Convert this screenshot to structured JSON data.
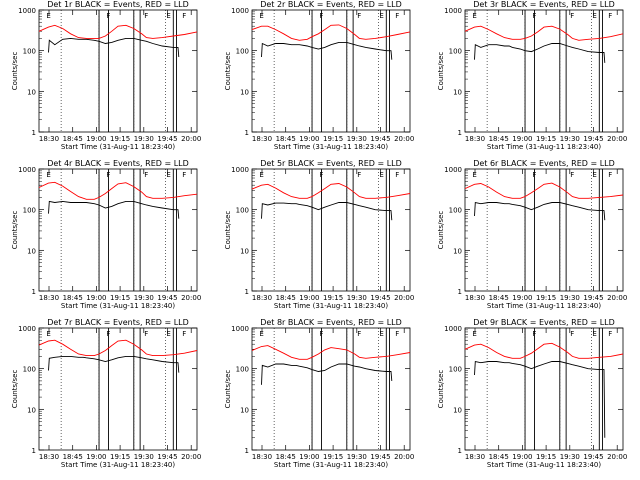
{
  "figure": {
    "title_pattern": "BLACK = Events, RED = LLD"
  },
  "common": {
    "xlabel": "Start Time (31-Aug-11 18:23:40)",
    "ylabel": "Counts/sec",
    "x_tick_labels": [
      "18:30",
      "18:45",
      "19:00",
      "19:15",
      "19:30",
      "19:45",
      "20:00"
    ],
    "y_tick_labels": [
      "1",
      "10",
      "100",
      "1000"
    ],
    "colors": {
      "events": "#000000",
      "lld": "#ff0000",
      "axes": "#000000"
    }
  },
  "chart_data": [
    {
      "type": "line",
      "title": "Det 1r  BLACK = Events, RED = LLD",
      "xlabel": "Start Time (31-Aug-11 18:23:40)",
      "ylabel": "Counts/sec",
      "x_unit": "minutes after 18:23:40",
      "xlim": [
        0,
        100
      ],
      "ylim": [
        1,
        1000
      ],
      "yscale": "log",
      "marker_labels": [
        "E",
        "F",
        "F",
        "F",
        "E"
      ],
      "series": [
        {
          "name": "LLD",
          "color": "#ff0000",
          "x": [
            0,
            6,
            10,
            15,
            20,
            25,
            30,
            35,
            38,
            42,
            46,
            50,
            55,
            60,
            65,
            68,
            72,
            78,
            85,
            92,
            100
          ],
          "y": [
            300,
            380,
            420,
            350,
            260,
            210,
            200,
            200,
            200,
            230,
            300,
            400,
            420,
            350,
            260,
            210,
            200,
            210,
            230,
            250,
            290
          ]
        },
        {
          "name": "Events",
          "color": "#000000",
          "x": [
            6,
            6.5,
            10,
            15,
            20,
            25,
            28,
            30,
            35,
            38,
            42,
            46,
            50,
            55,
            60,
            65,
            68,
            72,
            78,
            85,
            88,
            88.5
          ],
          "y": [
            90,
            180,
            140,
            190,
            200,
            190,
            190,
            190,
            180,
            170,
            150,
            160,
            180,
            200,
            200,
            180,
            170,
            150,
            130,
            120,
            120,
            70
          ]
        }
      ]
    },
    {
      "type": "line",
      "title": "Det 2r  BLACK = Events, RED = LLD",
      "xlabel": "Start Time (31-Aug-11 18:23:40)",
      "ylabel": "Counts/sec",
      "x_unit": "minutes after 18:23:40",
      "xlim": [
        0,
        100
      ],
      "ylim": [
        1,
        1000
      ],
      "yscale": "log",
      "marker_labels": [
        "E",
        "F",
        "F",
        "F",
        "E"
      ],
      "series": [
        {
          "name": "LLD",
          "color": "#ff0000",
          "x": [
            0,
            6,
            10,
            15,
            20,
            25,
            30,
            35,
            38,
            42,
            46,
            50,
            55,
            60,
            65,
            68,
            72,
            78,
            85,
            92,
            100
          ],
          "y": [
            330,
            400,
            400,
            330,
            260,
            200,
            180,
            190,
            220,
            260,
            330,
            420,
            430,
            350,
            250,
            200,
            190,
            200,
            220,
            250,
            290
          ]
        },
        {
          "name": "Events",
          "color": "#000000",
          "x": [
            6,
            6.5,
            10,
            15,
            20,
            25,
            28,
            30,
            35,
            38,
            42,
            46,
            50,
            55,
            60,
            65,
            68,
            72,
            78,
            85,
            88,
            88.5
          ],
          "y": [
            70,
            150,
            130,
            150,
            150,
            140,
            140,
            140,
            130,
            120,
            110,
            120,
            140,
            160,
            160,
            140,
            130,
            120,
            110,
            100,
            100,
            60
          ]
        }
      ]
    },
    {
      "type": "line",
      "title": "Det 3r  BLACK = Events, RED = LLD",
      "xlabel": "Start Time (31-Aug-11 18:23:40)",
      "ylabel": "Counts/sec",
      "x_unit": "minutes after 18:23:40",
      "xlim": [
        0,
        100
      ],
      "ylim": [
        1,
        1000
      ],
      "yscale": "log",
      "marker_labels": [
        "E",
        "F",
        "F",
        "F",
        "E"
      ],
      "series": [
        {
          "name": "LLD",
          "color": "#ff0000",
          "x": [
            0,
            6,
            10,
            15,
            20,
            25,
            30,
            35,
            38,
            42,
            46,
            50,
            55,
            60,
            65,
            68,
            72,
            78,
            85,
            92,
            100
          ],
          "y": [
            300,
            380,
            400,
            330,
            260,
            210,
            190,
            190,
            200,
            230,
            290,
            380,
            400,
            340,
            250,
            200,
            180,
            190,
            200,
            220,
            260
          ]
        },
        {
          "name": "Events",
          "color": "#000000",
          "x": [
            6,
            6.5,
            10,
            15,
            20,
            25,
            28,
            30,
            35,
            38,
            42,
            46,
            50,
            55,
            60,
            65,
            68,
            72,
            78,
            85,
            88,
            88.5
          ],
          "y": [
            60,
            140,
            120,
            140,
            140,
            130,
            130,
            120,
            110,
            100,
            95,
            110,
            130,
            150,
            150,
            130,
            120,
            110,
            95,
            90,
            90,
            50
          ]
        }
      ]
    },
    {
      "type": "line",
      "title": "Det 4r  BLACK = Events, RED = LLD",
      "xlabel": "Start Time (31-Aug-11 18:23:40)",
      "ylabel": "Counts/sec",
      "x_unit": "minutes after 18:23:40",
      "xlim": [
        0,
        100
      ],
      "ylim": [
        1,
        1000
      ],
      "yscale": "log",
      "marker_labels": [
        "E",
        "F",
        "F",
        "F",
        "E"
      ],
      "series": [
        {
          "name": "LLD",
          "color": "#ff0000",
          "x": [
            0,
            6,
            10,
            15,
            20,
            25,
            30,
            35,
            38,
            42,
            46,
            50,
            55,
            60,
            65,
            68,
            72,
            78,
            85,
            92,
            100
          ],
          "y": [
            350,
            450,
            470,
            380,
            280,
            210,
            180,
            180,
            200,
            250,
            330,
            430,
            460,
            370,
            270,
            210,
            190,
            190,
            200,
            220,
            240
          ]
        },
        {
          "name": "Events",
          "color": "#000000",
          "x": [
            6,
            6.5,
            10,
            15,
            20,
            25,
            28,
            30,
            35,
            38,
            42,
            46,
            50,
            55,
            60,
            65,
            68,
            72,
            78,
            85,
            88,
            88.5
          ],
          "y": [
            80,
            160,
            150,
            160,
            150,
            150,
            150,
            150,
            140,
            130,
            110,
            120,
            140,
            160,
            160,
            140,
            130,
            120,
            110,
            100,
            100,
            60
          ]
        }
      ]
    },
    {
      "type": "line",
      "title": "Det 5r  BLACK = Events, RED = LLD",
      "xlabel": "Start Time (31-Aug-11 18:23:40)",
      "ylabel": "Counts/sec",
      "x_unit": "minutes after 18:23:40",
      "xlim": [
        0,
        100
      ],
      "ylim": [
        1,
        1000
      ],
      "yscale": "log",
      "marker_labels": [
        "E",
        "F",
        "F",
        "F",
        "E"
      ],
      "series": [
        {
          "name": "LLD",
          "color": "#ff0000",
          "x": [
            0,
            6,
            10,
            15,
            20,
            25,
            30,
            35,
            38,
            42,
            46,
            50,
            55,
            60,
            65,
            68,
            72,
            78,
            85,
            92,
            100
          ],
          "y": [
            320,
            400,
            420,
            340,
            260,
            210,
            190,
            190,
            210,
            260,
            330,
            420,
            440,
            360,
            260,
            210,
            190,
            190,
            200,
            220,
            250
          ]
        },
        {
          "name": "Events",
          "color": "#000000",
          "x": [
            6,
            6.5,
            10,
            15,
            20,
            25,
            28,
            30,
            35,
            38,
            42,
            46,
            50,
            55,
            60,
            65,
            68,
            72,
            78,
            85,
            88,
            88.5
          ],
          "y": [
            60,
            140,
            130,
            145,
            145,
            140,
            140,
            135,
            125,
            115,
            100,
            115,
            130,
            150,
            150,
            135,
            125,
            115,
            100,
            95,
            95,
            55
          ]
        }
      ]
    },
    {
      "type": "line",
      "title": "Det 6r  BLACK = Events, RED = LLD",
      "xlabel": "Start Time (31-Aug-11 18:23:40)",
      "ylabel": "Counts/sec",
      "x_unit": "minutes after 18:23:40",
      "xlim": [
        0,
        100
      ],
      "ylim": [
        1,
        1000
      ],
      "yscale": "log",
      "marker_labels": [
        "E",
        "F",
        "F",
        "F",
        "E"
      ],
      "series": [
        {
          "name": "LLD",
          "color": "#ff0000",
          "x": [
            0,
            6,
            10,
            15,
            20,
            25,
            30,
            35,
            38,
            42,
            46,
            50,
            55,
            60,
            65,
            68,
            72,
            78,
            85,
            92,
            100
          ],
          "y": [
            330,
            420,
            440,
            360,
            270,
            210,
            190,
            190,
            210,
            260,
            330,
            420,
            450,
            360,
            260,
            210,
            190,
            190,
            200,
            210,
            230
          ]
        },
        {
          "name": "Events",
          "color": "#000000",
          "x": [
            6,
            6.5,
            10,
            15,
            20,
            25,
            28,
            30,
            35,
            38,
            42,
            46,
            50,
            55,
            60,
            65,
            68,
            72,
            78,
            85,
            88,
            88.5
          ],
          "y": [
            70,
            150,
            140,
            150,
            150,
            140,
            140,
            135,
            125,
            115,
            100,
            115,
            135,
            150,
            150,
            135,
            125,
            115,
            100,
            95,
            95,
            55
          ]
        }
      ]
    },
    {
      "type": "line",
      "title": "Det 7r  BLACK = Events, RED = LLD",
      "xlabel": "Start Time (31-Aug-11 18:23:40)",
      "ylabel": "Counts/sec",
      "x_unit": "minutes after 18:23:40",
      "xlim": [
        0,
        100
      ],
      "ylim": [
        1,
        1000
      ],
      "yscale": "log",
      "marker_labels": [
        "E",
        "F",
        "F",
        "F",
        "E"
      ],
      "series": [
        {
          "name": "LLD",
          "color": "#ff0000",
          "x": [
            0,
            6,
            10,
            15,
            20,
            25,
            30,
            35,
            38,
            42,
            46,
            50,
            55,
            60,
            65,
            68,
            72,
            78,
            85,
            92,
            100
          ],
          "y": [
            380,
            480,
            500,
            400,
            300,
            230,
            210,
            210,
            230,
            280,
            370,
            480,
            500,
            400,
            290,
            230,
            210,
            210,
            220,
            240,
            280
          ]
        },
        {
          "name": "Events",
          "color": "#000000",
          "x": [
            6,
            6.5,
            10,
            15,
            20,
            25,
            28,
            30,
            35,
            38,
            42,
            46,
            50,
            55,
            60,
            65,
            68,
            72,
            78,
            85,
            88,
            88.5
          ],
          "y": [
            90,
            180,
            190,
            200,
            200,
            190,
            190,
            185,
            175,
            165,
            150,
            165,
            185,
            200,
            200,
            185,
            175,
            165,
            150,
            140,
            140,
            80
          ]
        }
      ]
    },
    {
      "type": "line",
      "title": "Det 8r  BLACK = Events, RED = LLD",
      "xlabel": "Start Time (31-Aug-11 18:23:40)",
      "ylabel": "Counts/sec",
      "x_unit": "minutes after 18:23:40",
      "xlim": [
        0,
        100
      ],
      "ylim": [
        1,
        1000
      ],
      "yscale": "log",
      "marker_labels": [
        "E",
        "F",
        "F",
        "F",
        "E"
      ],
      "series": [
        {
          "name": "LLD",
          "color": "#ff0000",
          "x": [
            0,
            6,
            10,
            15,
            20,
            25,
            30,
            35,
            38,
            42,
            46,
            50,
            55,
            60,
            65,
            68,
            72,
            78,
            85,
            92,
            100
          ],
          "y": [
            280,
            350,
            370,
            300,
            240,
            190,
            170,
            170,
            190,
            230,
            290,
            330,
            310,
            290,
            230,
            190,
            180,
            190,
            200,
            220,
            250
          ]
        },
        {
          "name": "Events",
          "color": "#000000",
          "x": [
            6,
            6.5,
            10,
            15,
            20,
            25,
            28,
            30,
            35,
            38,
            42,
            46,
            50,
            55,
            60,
            65,
            68,
            72,
            78,
            85,
            88,
            88.5
          ],
          "y": [
            40,
            120,
            110,
            130,
            130,
            120,
            120,
            115,
            105,
            95,
            85,
            90,
            110,
            130,
            130,
            115,
            110,
            100,
            90,
            85,
            85,
            50
          ]
        }
      ]
    },
    {
      "type": "line",
      "title": "Det 9r  BLACK = Events, RED = LLD",
      "xlabel": "Start Time (31-Aug-11 18:23:40)",
      "ylabel": "Counts/sec",
      "x_unit": "minutes after 18:23:40",
      "xlim": [
        0,
        100
      ],
      "ylim": [
        1,
        1000
      ],
      "yscale": "log",
      "marker_labels": [
        "E",
        "F",
        "F",
        "F",
        "E"
      ],
      "series": [
        {
          "name": "LLD",
          "color": "#ff0000",
          "x": [
            0,
            6,
            10,
            15,
            20,
            25,
            30,
            35,
            38,
            42,
            46,
            50,
            55,
            60,
            65,
            68,
            72,
            78,
            85,
            92,
            100
          ],
          "y": [
            300,
            380,
            400,
            330,
            250,
            200,
            180,
            180,
            200,
            240,
            310,
            400,
            420,
            340,
            250,
            200,
            180,
            180,
            190,
            200,
            230
          ]
        },
        {
          "name": "Events",
          "color": "#000000",
          "x": [
            6,
            6.5,
            10,
            15,
            20,
            25,
            28,
            30,
            35,
            38,
            42,
            46,
            50,
            55,
            60,
            65,
            68,
            72,
            78,
            85,
            88,
            88.5
          ],
          "y": [
            70,
            150,
            140,
            150,
            150,
            140,
            140,
            135,
            125,
            115,
            100,
            115,
            130,
            150,
            150,
            135,
            125,
            115,
            100,
            95,
            95,
            2
          ]
        }
      ]
    }
  ]
}
